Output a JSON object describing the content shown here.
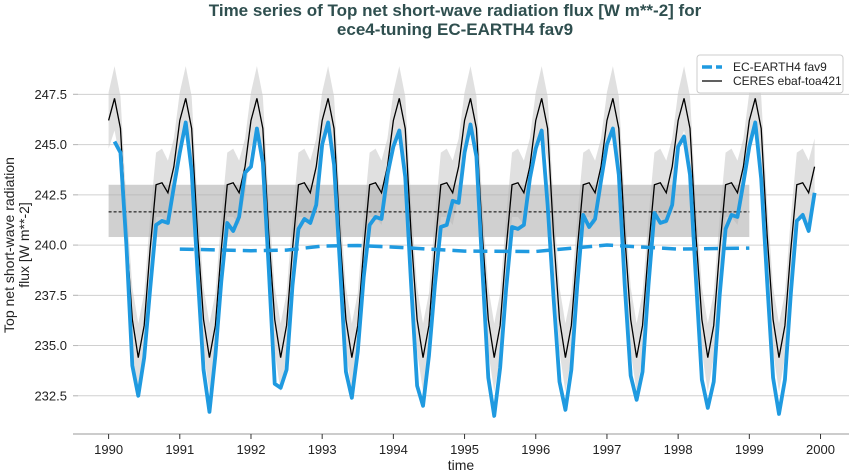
{
  "chart_data": {
    "type": "line",
    "title_lines": [
      "Time series of Top net short-wave radiation flux [W m**-2] for",
      "ece4-tuning EC-EARTH4 fav9"
    ],
    "xlabel": "time",
    "ylabel_lines": [
      "Top net short-wave radiation",
      "flux [W m**-2]"
    ],
    "xlim": [
      1989.5,
      2000.4
    ],
    "ylim": [
      230.6,
      250.7
    ],
    "xticks": [
      "1990",
      "1991",
      "1992",
      "1993",
      "1994",
      "1995",
      "1996",
      "1997",
      "1998",
      "1999",
      "2000"
    ],
    "yticks": [
      "232.5",
      "235.0",
      "237.5",
      "240.0",
      "242.5",
      "245.0",
      "247.5"
    ],
    "grid": "horizontal",
    "legend_position": "top-right",
    "colors": {
      "model": "#1f9ae0",
      "obs": "#000000",
      "band": "#cccccc",
      "mean_band": "#b0b0b0"
    },
    "x_start_year": 1990,
    "series": [
      {
        "name": "EC-EARTH4 fav9",
        "style": "solid",
        "monthly_values": [
          null,
          245.15,
          244.6,
          240.0,
          234.0,
          232.5,
          234.4,
          237.8,
          241.0,
          241.2,
          241.1,
          242.9,
          244.6,
          246.1,
          243.7,
          238.6,
          233.8,
          231.7,
          234.5,
          238.2,
          241.1,
          240.7,
          241.4,
          243.6,
          243.9,
          245.8,
          244.1,
          238.8,
          233.1,
          232.9,
          233.8,
          238.0,
          240.8,
          241.3,
          241.1,
          242.0,
          245.0,
          246.1,
          244.0,
          239.0,
          233.7,
          232.4,
          234.7,
          238.4,
          241.0,
          241.4,
          241.3,
          243.5,
          244.9,
          245.7,
          243.4,
          238.0,
          233.0,
          232.0,
          234.5,
          238.0,
          240.9,
          241.0,
          242.2,
          242.1,
          244.6,
          246.0,
          244.4,
          238.8,
          233.4,
          231.5,
          233.9,
          237.8,
          240.9,
          240.8,
          241.0,
          243.3,
          244.8,
          245.7,
          242.0,
          237.4,
          233.2,
          231.8,
          233.8,
          238.0,
          241.5,
          240.9,
          241.3,
          243.2,
          245.0,
          245.8,
          243.5,
          238.0,
          233.5,
          232.3,
          233.7,
          238.0,
          241.6,
          241.1,
          241.2,
          242.0,
          244.9,
          245.4,
          243.5,
          238.3,
          233.3,
          231.9,
          233.2,
          237.5,
          240.8,
          241.5,
          241.4,
          243.1,
          244.9,
          246.1,
          243.3,
          238.2,
          233.4,
          231.6,
          233.3,
          237.6,
          241.2,
          241.5,
          240.7,
          242.6
        ]
      },
      {
        "name": "CERES ebaf-toa421",
        "style": "solid",
        "monthly_climatology": [
          246.2,
          247.3,
          245.8,
          240.5,
          236.3,
          234.4,
          236.0,
          239.8,
          243.0,
          243.1,
          242.6,
          243.9
        ],
        "climatology_spread": [
          1.4,
          1.6,
          1.6,
          1.6,
          1.6,
          1.7,
          1.6,
          1.6,
          1.6,
          1.7,
          1.6,
          1.4
        ],
        "years": [
          1990,
          1999
        ]
      }
    ],
    "model_running_mean": {
      "x": [
        1991.0,
        1992.0,
        1992.5,
        1993.0,
        1993.5,
        1994.0,
        1995.0,
        1996.0,
        1997.0,
        1998.0,
        1999.0
      ],
      "y": [
        239.8,
        239.72,
        239.75,
        239.95,
        239.98,
        239.9,
        239.7,
        239.68,
        240.0,
        239.8,
        239.85
      ]
    },
    "obs_mean": {
      "value": 241.65,
      "lower": 240.4,
      "upper": 243.0,
      "x_range": [
        1990.0,
        1999.0
      ]
    }
  }
}
